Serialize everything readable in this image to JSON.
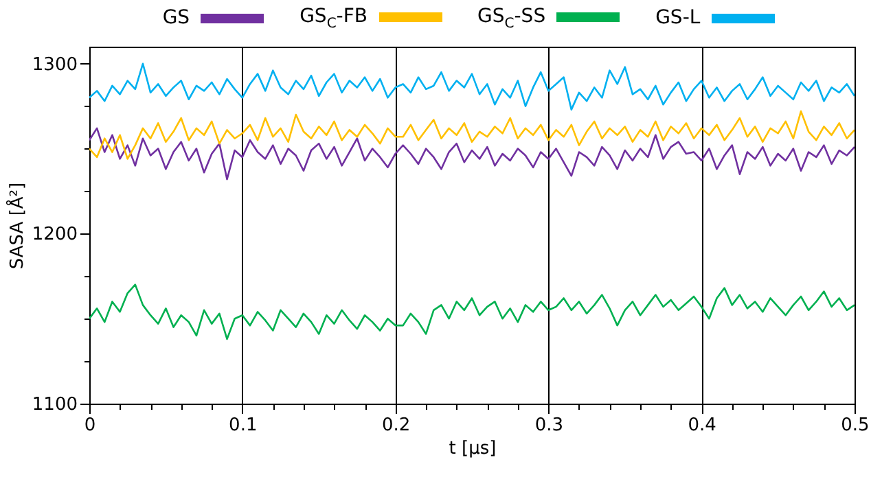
{
  "chart_data": {
    "type": "line",
    "xlabel": "t [μs]",
    "ylabel": "SASA [Å²]",
    "x": [
      0,
      0.005,
      0.01,
      0.015,
      0.02,
      0.025,
      0.03,
      0.035,
      0.04,
      0.045,
      0.05,
      0.055,
      0.06,
      0.065,
      0.07,
      0.075,
      0.08,
      0.085,
      0.09,
      0.095,
      0.1,
      0.105,
      0.11,
      0.115,
      0.12,
      0.125,
      0.13,
      0.135,
      0.14,
      0.145,
      0.15,
      0.155,
      0.16,
      0.165,
      0.17,
      0.175,
      0.18,
      0.185,
      0.19,
      0.195,
      0.2,
      0.205,
      0.21,
      0.215,
      0.22,
      0.225,
      0.23,
      0.235,
      0.24,
      0.245,
      0.25,
      0.255,
      0.26,
      0.265,
      0.27,
      0.275,
      0.28,
      0.285,
      0.29,
      0.295,
      0.3,
      0.305,
      0.31,
      0.315,
      0.32,
      0.325,
      0.33,
      0.335,
      0.34,
      0.345,
      0.35,
      0.355,
      0.36,
      0.365,
      0.37,
      0.375,
      0.38,
      0.385,
      0.39,
      0.395,
      0.4,
      0.405,
      0.41,
      0.415,
      0.42,
      0.425,
      0.43,
      0.435,
      0.44,
      0.445,
      0.45,
      0.455,
      0.46,
      0.465,
      0.47,
      0.475,
      0.48,
      0.485,
      0.49,
      0.495,
      0.5
    ],
    "series": [
      {
        "name": "GS",
        "color": "#7030a0",
        "values": [
          1255,
          1262,
          1248,
          1258,
          1244,
          1252,
          1240,
          1256,
          1246,
          1250,
          1238,
          1248,
          1254,
          1243,
          1250,
          1236,
          1247,
          1253,
          1232,
          1249,
          1245,
          1255,
          1248,
          1244,
          1252,
          1241,
          1250,
          1246,
          1237,
          1249,
          1253,
          1244,
          1251,
          1240,
          1248,
          1256,
          1243,
          1250,
          1245,
          1239,
          1247,
          1252,
          1247,
          1241,
          1250,
          1245,
          1238,
          1248,
          1253,
          1242,
          1249,
          1244,
          1251,
          1240,
          1247,
          1243,
          1250,
          1246,
          1239,
          1248,
          1244,
          1250,
          1242,
          1234,
          1248,
          1245,
          1240,
          1251,
          1246,
          1238,
          1249,
          1243,
          1250,
          1245,
          1258,
          1244,
          1251,
          1254,
          1247,
          1248,
          1243,
          1250,
          1238,
          1246,
          1252,
          1235,
          1248,
          1244,
          1251,
          1240,
          1247,
          1243,
          1250,
          1237,
          1248,
          1245,
          1252,
          1241,
          1249,
          1246,
          1251
        ]
      },
      {
        "name": "GS$_{C}$-FB",
        "color": "#ffc000",
        "values": [
          1250,
          1245,
          1256,
          1248,
          1258,
          1244,
          1252,
          1262,
          1256,
          1265,
          1254,
          1260,
          1268,
          1255,
          1262,
          1258,
          1266,
          1253,
          1261,
          1256,
          1259,
          1264,
          1255,
          1268,
          1257,
          1262,
          1254,
          1270,
          1260,
          1256,
          1263,
          1258,
          1266,
          1255,
          1261,
          1257,
          1264,
          1259,
          1253,
          1262,
          1257,
          1257,
          1264,
          1255,
          1261,
          1267,
          1256,
          1262,
          1258,
          1265,
          1254,
          1260,
          1257,
          1263,
          1259,
          1268,
          1256,
          1262,
          1258,
          1264,
          1255,
          1261,
          1257,
          1264,
          1252,
          1260,
          1266,
          1256,
          1262,
          1258,
          1263,
          1254,
          1261,
          1257,
          1266,
          1255,
          1263,
          1259,
          1265,
          1256,
          1262,
          1258,
          1264,
          1255,
          1261,
          1268,
          1257,
          1263,
          1254,
          1262,
          1259,
          1266,
          1256,
          1272,
          1260,
          1255,
          1263,
          1258,
          1265,
          1256,
          1261
        ]
      },
      {
        "name": "GS$_{C}$-SS",
        "color": "#00b050",
        "values": [
          1150,
          1156,
          1148,
          1160,
          1154,
          1165,
          1170,
          1158,
          1152,
          1147,
          1156,
          1145,
          1152,
          1148,
          1140,
          1155,
          1147,
          1153,
          1138,
          1150,
          1152,
          1146,
          1154,
          1149,
          1143,
          1155,
          1150,
          1145,
          1153,
          1148,
          1141,
          1152,
          1147,
          1155,
          1149,
          1144,
          1152,
          1148,
          1143,
          1150,
          1146,
          1146,
          1153,
          1148,
          1141,
          1155,
          1158,
          1150,
          1160,
          1155,
          1162,
          1152,
          1157,
          1160,
          1150,
          1156,
          1148,
          1158,
          1154,
          1160,
          1155,
          1157,
          1162,
          1155,
          1160,
          1153,
          1158,
          1164,
          1156,
          1146,
          1155,
          1160,
          1152,
          1158,
          1164,
          1157,
          1161,
          1155,
          1159,
          1163,
          1157,
          1150,
          1162,
          1168,
          1158,
          1164,
          1156,
          1160,
          1154,
          1162,
          1157,
          1152,
          1158,
          1163,
          1155,
          1160,
          1166,
          1157,
          1162,
          1155,
          1158
        ]
      },
      {
        "name": "GS-L",
        "color": "#00b0f0",
        "values": [
          1280,
          1284,
          1278,
          1287,
          1282,
          1290,
          1285,
          1300,
          1283,
          1288,
          1281,
          1286,
          1290,
          1279,
          1287,
          1284,
          1289,
          1282,
          1291,
          1285,
          1280,
          1288,
          1294,
          1284,
          1296,
          1286,
          1282,
          1290,
          1285,
          1293,
          1281,
          1289,
          1294,
          1283,
          1290,
          1286,
          1292,
          1284,
          1291,
          1280,
          1286,
          1288,
          1283,
          1292,
          1285,
          1287,
          1295,
          1284,
          1290,
          1286,
          1294,
          1282,
          1288,
          1276,
          1285,
          1280,
          1290,
          1275,
          1286,
          1295,
          1284,
          1288,
          1292,
          1273,
          1283,
          1278,
          1286,
          1280,
          1296,
          1288,
          1298,
          1282,
          1285,
          1279,
          1287,
          1276,
          1283,
          1289,
          1278,
          1285,
          1290,
          1280,
          1286,
          1278,
          1284,
          1288,
          1279,
          1285,
          1292,
          1281,
          1287,
          1283,
          1279,
          1289,
          1284,
          1290,
          1278,
          1286,
          1283,
          1288,
          1281
        ]
      }
    ],
    "xlim": [
      0,
      0.5
    ],
    "xticks": [
      0,
      {
        "value": 0.02,
        "label": null
      },
      {
        "value": 0.04,
        "label": null
      },
      {
        "value": 0.06,
        "label": null
      },
      {
        "value": 0.08,
        "label": null
      },
      0.1,
      {
        "value": 0.12,
        "label": null
      },
      {
        "value": 0.14,
        "label": null
      },
      {
        "value": 0.16,
        "label": null
      },
      {
        "value": 0.18,
        "label": null
      },
      0.2,
      {
        "value": 0.22,
        "label": null
      },
      {
        "value": 0.24,
        "label": null
      },
      {
        "value": 0.26,
        "label": null
      },
      {
        "value": 0.28,
        "label": null
      },
      0.3,
      {
        "value": 0.32,
        "label": null
      },
      {
        "value": 0.34,
        "label": null
      },
      {
        "value": 0.36,
        "label": null
      },
      {
        "value": 0.38,
        "label": null
      },
      0.4,
      {
        "value": 0.42,
        "label": null
      },
      {
        "value": 0.44,
        "label": null
      },
      {
        "value": 0.46,
        "label": null
      },
      {
        "value": 0.48,
        "label": null
      },
      0.5
    ],
    "ylim": [
      1100,
      1310
    ],
    "yticks": [
      1100,
      {
        "value": 1125,
        "label": null
      },
      {
        "value": 1150,
        "label": null
      },
      {
        "value": 1175,
        "label": null
      },
      1200,
      {
        "value": 1225,
        "label": null
      },
      {
        "value": 1250,
        "label": null
      },
      {
        "value": 1275,
        "label": null
      },
      1300
    ],
    "grid": "x",
    "legend": "top",
    "line_style": "solid",
    "marker": "none"
  }
}
